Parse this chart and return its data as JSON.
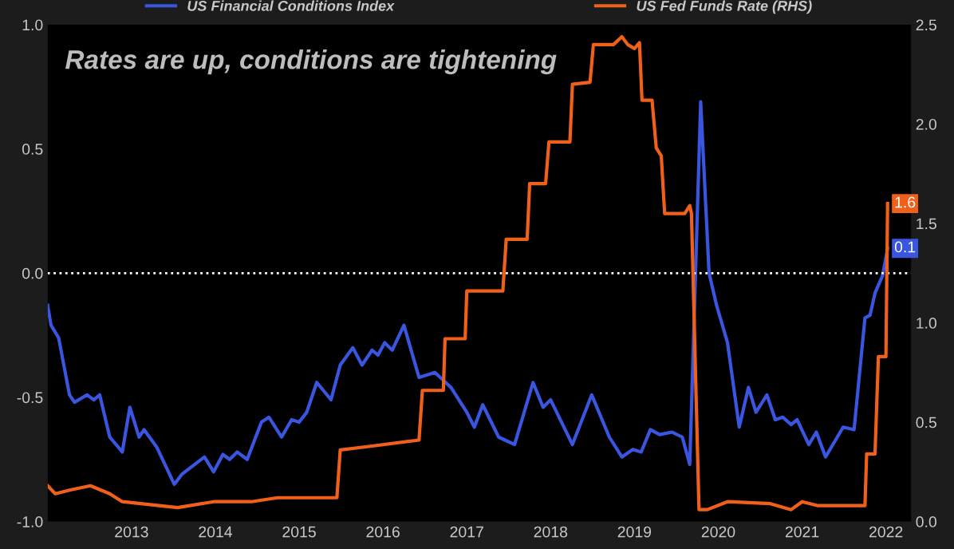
{
  "chart_data": {
    "type": "line",
    "title": "Rates are up, conditions are tightening",
    "xlim": [
      2012.0,
      2022.3
    ],
    "xticks": [
      2013,
      2014,
      2015,
      2016,
      2017,
      2018,
      2019,
      2020,
      2021,
      2022
    ],
    "ylim": [
      -1.0,
      1.0
    ],
    "yticks": [
      {
        "value": -1.0,
        "label": "-1.0"
      },
      {
        "value": -0.5,
        "label": "-0.5"
      },
      {
        "value": 0.0,
        "label": "0.0"
      },
      {
        "value": 0.5,
        "label": "0.5"
      },
      {
        "value": 1.0,
        "label": "1.0"
      }
    ],
    "y2lim": [
      0.0,
      2.5
    ],
    "y2ticks": [
      {
        "value": 0.0,
        "label": "0.0"
      },
      {
        "value": 0.5,
        "label": "0.5"
      },
      {
        "value": 1.0,
        "label": "1.0"
      },
      {
        "value": 1.5,
        "label": "1.5"
      },
      {
        "value": 2.0,
        "label": "2.0"
      },
      {
        "value": 2.5,
        "label": "2.5"
      }
    ],
    "grid": false,
    "legend": "top",
    "marker": "none",
    "line_style": "solid",
    "ref_lines": [
      {
        "axis": "y",
        "value": 0,
        "color": "#ffffff",
        "line_style": "dotted"
      }
    ],
    "series": [
      {
        "name": "US Financial Conditions Index",
        "color": "#3a55e0",
        "axis": "y",
        "x": [
          2012.0,
          2012.04,
          2012.13,
          2012.26,
          2012.32,
          2012.47,
          2012.55,
          2012.62,
          2012.74,
          2012.89,
          2012.98,
          2013.09,
          2013.15,
          2013.3,
          2013.51,
          2013.6,
          2013.87,
          2013.98,
          2014.09,
          2014.17,
          2014.26,
          2014.38,
          2014.55,
          2014.64,
          2014.79,
          2014.91,
          2015.0,
          2015.09,
          2015.21,
          2015.38,
          2015.49,
          2015.64,
          2015.75,
          2015.87,
          2015.94,
          2016.02,
          2016.11,
          2016.25,
          2016.43,
          2016.62,
          2016.81,
          2017.0,
          2017.09,
          2017.19,
          2017.38,
          2017.57,
          2017.79,
          2017.91,
          2018.0,
          2018.26,
          2018.49,
          2018.7,
          2018.85,
          2018.98,
          2019.08,
          2019.19,
          2019.3,
          2019.45,
          2019.57,
          2019.66,
          2019.79,
          2019.89,
          2019.98,
          2020.11,
          2020.25,
          2020.36,
          2020.45,
          2020.58,
          2020.68,
          2020.77,
          2020.87,
          2020.94,
          2021.08,
          2021.17,
          2021.28,
          2021.49,
          2021.62,
          2021.75,
          2021.81,
          2021.87,
          2021.96,
          2022.02
        ],
        "values": [
          -0.13,
          -0.21,
          -0.26,
          -0.49,
          -0.52,
          -0.49,
          -0.51,
          -0.49,
          -0.66,
          -0.72,
          -0.54,
          -0.66,
          -0.63,
          -0.7,
          -0.85,
          -0.81,
          -0.74,
          -0.8,
          -0.73,
          -0.75,
          -0.72,
          -0.75,
          -0.6,
          -0.58,
          -0.66,
          -0.59,
          -0.6,
          -0.56,
          -0.44,
          -0.51,
          -0.37,
          -0.3,
          -0.37,
          -0.31,
          -0.33,
          -0.28,
          -0.31,
          -0.21,
          -0.42,
          -0.4,
          -0.46,
          -0.56,
          -0.62,
          -0.53,
          -0.66,
          -0.69,
          -0.44,
          -0.54,
          -0.51,
          -0.69,
          -0.49,
          -0.66,
          -0.74,
          -0.71,
          -0.72,
          -0.63,
          -0.65,
          -0.64,
          -0.66,
          -0.77,
          0.69,
          0.0,
          -0.13,
          -0.28,
          -0.62,
          -0.46,
          -0.56,
          -0.49,
          -0.59,
          -0.58,
          -0.61,
          -0.59,
          -0.69,
          -0.64,
          -0.74,
          -0.62,
          -0.63,
          -0.18,
          -0.17,
          -0.08,
          -0.01,
          0.1
        ],
        "value_labels": [
          null,
          null,
          null,
          null,
          null,
          null,
          null,
          null,
          null,
          null,
          null,
          null,
          null,
          null,
          null,
          null,
          null,
          null,
          null,
          null,
          null,
          null,
          null,
          null,
          null,
          null,
          null,
          null,
          null,
          null,
          null,
          null,
          null,
          null,
          null,
          null,
          null,
          null,
          null,
          null,
          null,
          null,
          null,
          null,
          null,
          null,
          null,
          null,
          null,
          null,
          null,
          null,
          null,
          null,
          null,
          null,
          null,
          null,
          null,
          null,
          null,
          null,
          null,
          null,
          null,
          null,
          null,
          null,
          null,
          null,
          null,
          null,
          null,
          null,
          null,
          null,
          null,
          null,
          null,
          null,
          null,
          "0.1"
        ]
      },
      {
        "name": "US Fed Funds Rate (RHS)",
        "color": "#f0601a",
        "axis": "y2",
        "x": [
          2012.0,
          2012.09,
          2012.28,
          2012.51,
          2012.74,
          2012.89,
          2013.11,
          2013.55,
          2013.98,
          2014.43,
          2014.74,
          2015.38,
          2015.45,
          2015.49,
          2015.87,
          2016.43,
          2016.47,
          2016.72,
          2016.74,
          2016.98,
          2017.0,
          2017.43,
          2017.47,
          2017.72,
          2017.75,
          2017.94,
          2017.98,
          2018.23,
          2018.26,
          2018.47,
          2018.51,
          2018.75,
          2018.85,
          2018.92,
          2019.0,
          2019.06,
          2019.09,
          2019.21,
          2019.26,
          2019.32,
          2019.36,
          2019.6,
          2019.66,
          2019.68,
          2019.77,
          2019.87,
          2020.11,
          2020.62,
          2020.87,
          2021.0,
          2021.19,
          2021.75,
          2021.77,
          2021.87,
          2021.91,
          2022.0,
          2022.02
        ],
        "values": [
          0.18,
          0.14,
          0.16,
          0.18,
          0.14,
          0.1,
          0.09,
          0.07,
          0.1,
          0.1,
          0.12,
          0.12,
          0.12,
          0.36,
          0.38,
          0.41,
          0.66,
          0.66,
          0.92,
          0.92,
          1.16,
          1.16,
          1.42,
          1.42,
          1.7,
          1.7,
          1.91,
          1.91,
          2.2,
          2.21,
          2.4,
          2.4,
          2.44,
          2.4,
          2.38,
          2.41,
          2.12,
          2.12,
          1.88,
          1.84,
          1.55,
          1.55,
          1.59,
          1.55,
          0.06,
          0.06,
          0.1,
          0.09,
          0.06,
          0.1,
          0.08,
          0.08,
          0.34,
          0.34,
          0.83,
          0.83,
          1.6
        ],
        "value_labels": [
          null,
          null,
          null,
          null,
          null,
          null,
          null,
          null,
          null,
          null,
          null,
          null,
          null,
          null,
          null,
          null,
          null,
          null,
          null,
          null,
          null,
          null,
          null,
          null,
          null,
          null,
          null,
          null,
          null,
          null,
          null,
          null,
          null,
          null,
          null,
          null,
          null,
          null,
          null,
          null,
          null,
          null,
          null,
          null,
          null,
          null,
          null,
          null,
          null,
          null,
          null,
          null,
          null,
          null,
          null,
          null,
          "1.6"
        ]
      }
    ]
  }
}
